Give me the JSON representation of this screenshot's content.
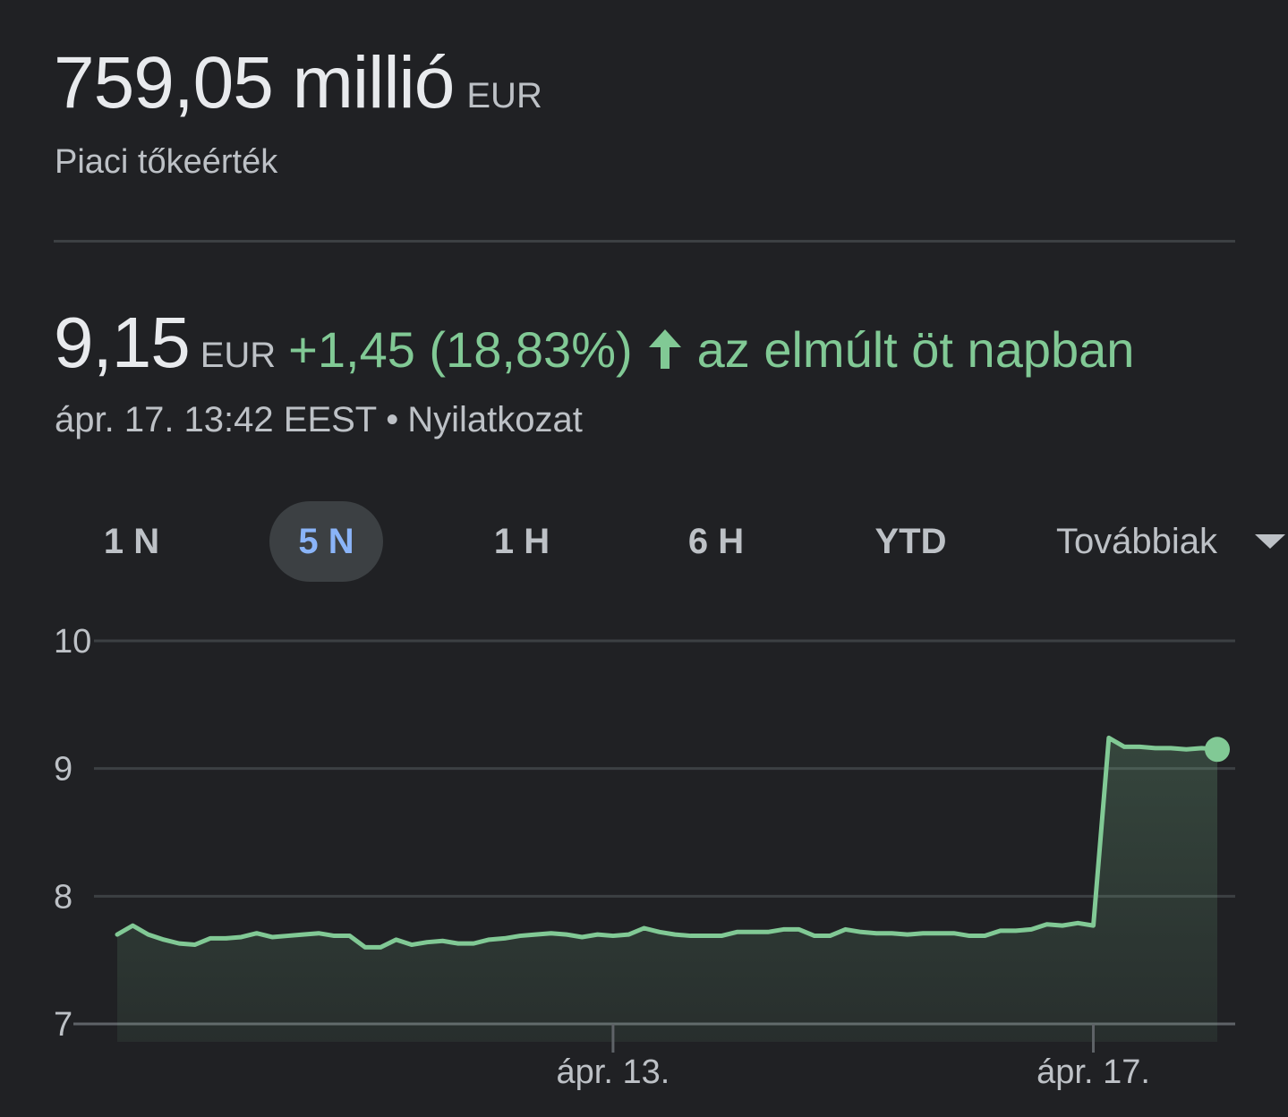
{
  "market_cap": {
    "value": "759,05 millió",
    "currency": "EUR",
    "label": "Piaci tőkeérték"
  },
  "quote": {
    "price": "9,15",
    "currency": "EUR",
    "change": "+1,45 (18,83%)",
    "direction_icon": "arrow-up-icon",
    "period": "az elmúlt öt napban",
    "timestamp": "ápr. 17. 13:42 EEST",
    "separator": "•",
    "disclaimer": "Nyilatkozat"
  },
  "range_tabs": {
    "items": [
      {
        "label": "1 N",
        "active": false
      },
      {
        "label": "5 N",
        "active": true
      },
      {
        "label": "1 H",
        "active": false
      },
      {
        "label": "6 H",
        "active": false
      },
      {
        "label": "YTD",
        "active": false
      }
    ],
    "more_label": "Továbbiak",
    "more_icon": "caret-down-icon"
  },
  "colors": {
    "background": "#202124",
    "positive": "#81c995",
    "active_tab": "#8ab4f8",
    "grid": "#3c4043"
  },
  "chart_data": {
    "type": "area",
    "ylim": [
      7,
      10
    ],
    "yticks": [
      "10",
      "9",
      "8",
      "7"
    ],
    "xticks": [
      "ápr. 13.",
      "ápr. 17."
    ],
    "grid": true,
    "series": [
      {
        "values": [
          7.7,
          7.77,
          7.7,
          7.66,
          7.63,
          7.62,
          7.67,
          7.67,
          7.68,
          7.71,
          7.68,
          7.69,
          7.7,
          7.71,
          7.69,
          7.69,
          7.6,
          7.6,
          7.66,
          7.62,
          7.64,
          7.65,
          7.63,
          7.63,
          7.66,
          7.67,
          7.69,
          7.7,
          7.71,
          7.7,
          7.68,
          7.7,
          7.69,
          7.7,
          7.75,
          7.72,
          7.7,
          7.69,
          7.69,
          7.69,
          7.72,
          7.72,
          7.72,
          7.74,
          7.74,
          7.69,
          7.69,
          7.74,
          7.72,
          7.71,
          7.71,
          7.7,
          7.71,
          7.71,
          7.71,
          7.69,
          7.69,
          7.73,
          7.73,
          7.74,
          7.78,
          7.77,
          7.79,
          7.77,
          9.24,
          9.17,
          9.17,
          9.16,
          9.16,
          9.15,
          9.16,
          9.15
        ],
        "day_boundary_indices": [
          32,
          63
        ]
      }
    ]
  }
}
